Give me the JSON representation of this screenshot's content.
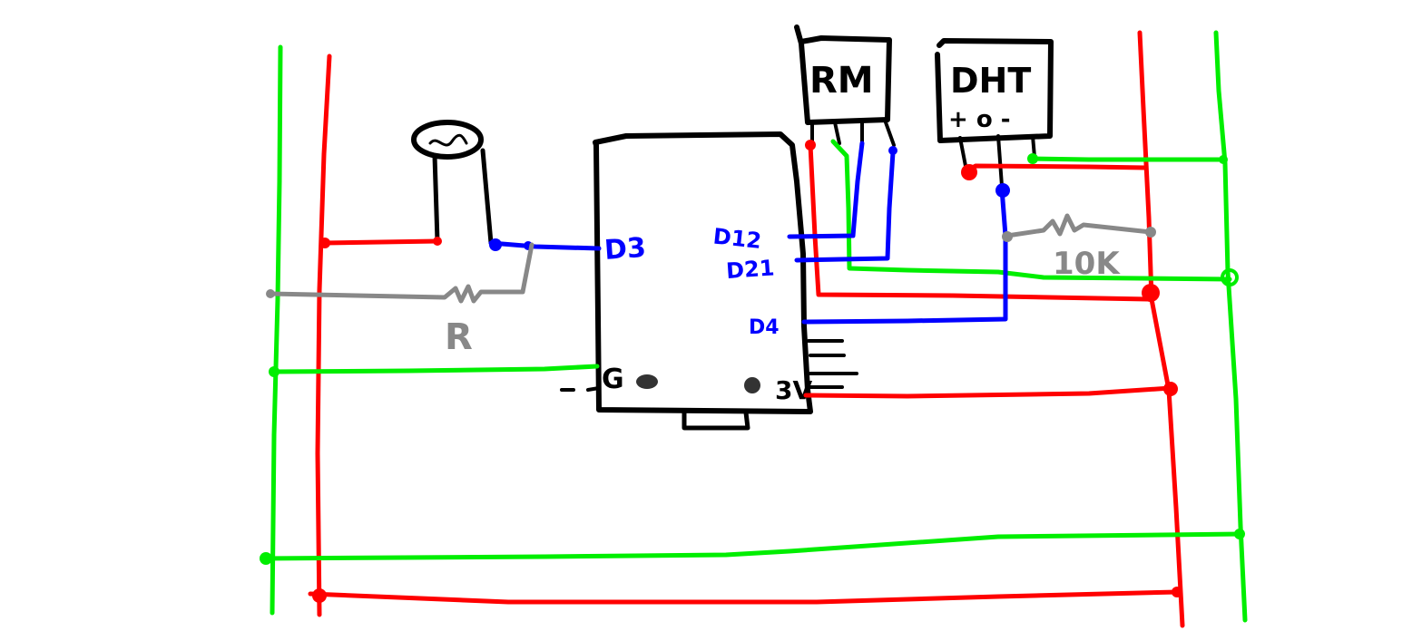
{
  "colors": {
    "ground": "#00ee00",
    "power": "#ff0000",
    "signal": "#0000ff",
    "resistor": "#888888",
    "outline": "#000000"
  },
  "board": {
    "pin_d3": "D3",
    "pin_d12": "D12",
    "pin_d21": "D21",
    "pin_d4": "D4",
    "pin_gnd": "G",
    "pin_3v": "3V",
    "pin_gnd_dash": "-"
  },
  "sensors": {
    "rm_label": "RM",
    "dht_label": "DHT",
    "dht_pins": "+ o -"
  },
  "resistors": {
    "r_label": "R",
    "pullup_label": "10K"
  }
}
